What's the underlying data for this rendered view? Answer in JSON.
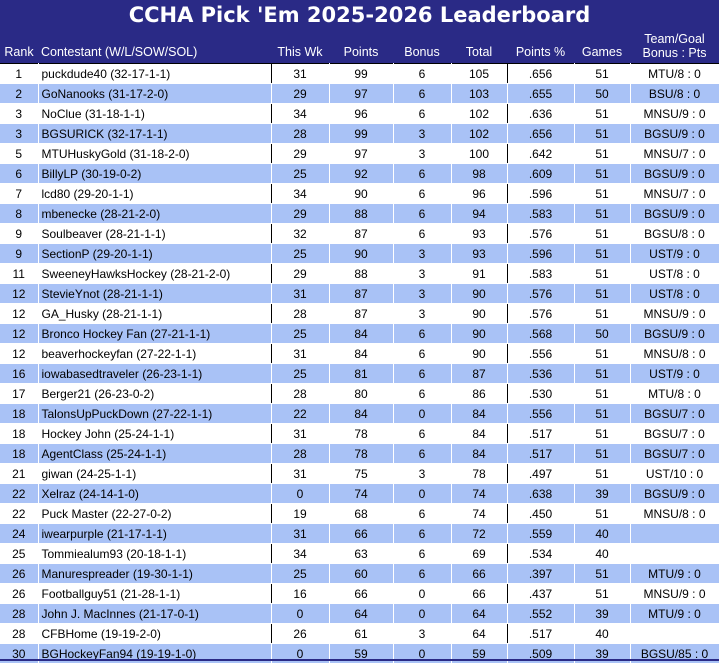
{
  "title": "CCHA Pick 'Em 2025-2026 Leaderboard",
  "headers": {
    "rank": "Rank",
    "contestant": "Contestant (W/L/SOW/SOL)",
    "this_wk": "This Wk",
    "points": "Points",
    "bonus": "Bonus",
    "total": "Total",
    "points_pct": "Points %",
    "games": "Games",
    "bonus_pts_line1": "Team/Goal",
    "bonus_pts_line2": "Bonus : Pts"
  },
  "rows": [
    {
      "rank": "1",
      "contestant": "puckdude40 (32-17-1-1)",
      "this_wk": "31",
      "points": "99",
      "bonus": "6",
      "total": "105",
      "pct": ".656",
      "games": "51",
      "bonus_pts": "MTU/8 : 0"
    },
    {
      "rank": "2",
      "contestant": "GoNanooks (31-17-2-0)",
      "this_wk": "29",
      "points": "97",
      "bonus": "6",
      "total": "103",
      "pct": ".655",
      "games": "50",
      "bonus_pts": "BSU/8 : 0"
    },
    {
      "rank": "3",
      "contestant": "NoClue (31-18-1-1)",
      "this_wk": "34",
      "points": "96",
      "bonus": "6",
      "total": "102",
      "pct": ".636",
      "games": "51",
      "bonus_pts": "MNSU/9 : 0"
    },
    {
      "rank": "3",
      "contestant": "BGSURICK (32-17-1-1)",
      "this_wk": "28",
      "points": "99",
      "bonus": "3",
      "total": "102",
      "pct": ".656",
      "games": "51",
      "bonus_pts": "BGSU/9 : 0"
    },
    {
      "rank": "5",
      "contestant": "MTUHuskyGold (31-18-2-0)",
      "this_wk": "29",
      "points": "97",
      "bonus": "3",
      "total": "100",
      "pct": ".642",
      "games": "51",
      "bonus_pts": "MNSU/7 : 0"
    },
    {
      "rank": "6",
      "contestant": "BillyLP (30-19-0-2)",
      "this_wk": "25",
      "points": "92",
      "bonus": "6",
      "total": "98",
      "pct": ".609",
      "games": "51",
      "bonus_pts": "BGSU/9 : 0"
    },
    {
      "rank": "7",
      "contestant": "lcd80 (29-20-1-1)",
      "this_wk": "34",
      "points": "90",
      "bonus": "6",
      "total": "96",
      "pct": ".596",
      "games": "51",
      "bonus_pts": "MNSU/7 : 0"
    },
    {
      "rank": "8",
      "contestant": "mbenecke (28-21-2-0)",
      "this_wk": "29",
      "points": "88",
      "bonus": "6",
      "total": "94",
      "pct": ".583",
      "games": "51",
      "bonus_pts": "BGSU/9 : 0"
    },
    {
      "rank": "9",
      "contestant": "Soulbeaver (28-21-1-1)",
      "this_wk": "32",
      "points": "87",
      "bonus": "6",
      "total": "93",
      "pct": ".576",
      "games": "51",
      "bonus_pts": "BGSU/8 : 0"
    },
    {
      "rank": "9",
      "contestant": "SectionP (29-20-1-1)",
      "this_wk": "25",
      "points": "90",
      "bonus": "3",
      "total": "93",
      "pct": ".596",
      "games": "51",
      "bonus_pts": "UST/9 : 0"
    },
    {
      "rank": "11",
      "contestant": "SweeneyHawksHockey (28-21-2-0)",
      "this_wk": "29",
      "points": "88",
      "bonus": "3",
      "total": "91",
      "pct": ".583",
      "games": "51",
      "bonus_pts": "UST/8 : 0"
    },
    {
      "rank": "12",
      "contestant": "StevieYnot (28-21-1-1)",
      "this_wk": "31",
      "points": "87",
      "bonus": "3",
      "total": "90",
      "pct": ".576",
      "games": "51",
      "bonus_pts": "UST/8 : 0"
    },
    {
      "rank": "12",
      "contestant": "GA_Husky (28-21-1-1)",
      "this_wk": "28",
      "points": "87",
      "bonus": "3",
      "total": "90",
      "pct": ".576",
      "games": "51",
      "bonus_pts": "MNSU/9 : 0"
    },
    {
      "rank": "12",
      "contestant": "Bronco Hockey Fan (27-21-1-1)",
      "this_wk": "25",
      "points": "84",
      "bonus": "6",
      "total": "90",
      "pct": ".568",
      "games": "50",
      "bonus_pts": "BGSU/9 : 0"
    },
    {
      "rank": "12",
      "contestant": "beaverhockeyfan (27-22-1-1)",
      "this_wk": "31",
      "points": "84",
      "bonus": "6",
      "total": "90",
      "pct": ".556",
      "games": "51",
      "bonus_pts": "MNSU/8 : 0"
    },
    {
      "rank": "16",
      "contestant": "iowabasedtraveler (26-23-1-1)",
      "this_wk": "25",
      "points": "81",
      "bonus": "6",
      "total": "87",
      "pct": ".536",
      "games": "51",
      "bonus_pts": "UST/9 : 0"
    },
    {
      "rank": "17",
      "contestant": "Berger21 (26-23-0-2)",
      "this_wk": "28",
      "points": "80",
      "bonus": "6",
      "total": "86",
      "pct": ".530",
      "games": "51",
      "bonus_pts": "MTU/8 : 0"
    },
    {
      "rank": "18",
      "contestant": "TalonsUpPuckDown (27-22-1-1)",
      "this_wk": "22",
      "points": "84",
      "bonus": "0",
      "total": "84",
      "pct": ".556",
      "games": "51",
      "bonus_pts": "BGSU/7 : 0"
    },
    {
      "rank": "18",
      "contestant": "Hockey John (25-24-1-1)",
      "this_wk": "31",
      "points": "78",
      "bonus": "6",
      "total": "84",
      "pct": ".517",
      "games": "51",
      "bonus_pts": "BGSU/7 : 0"
    },
    {
      "rank": "18",
      "contestant": "AgentClass (25-24-1-1)",
      "this_wk": "28",
      "points": "78",
      "bonus": "6",
      "total": "84",
      "pct": ".517",
      "games": "51",
      "bonus_pts": "BGSU/7 : 0"
    },
    {
      "rank": "21",
      "contestant": "giwan (24-25-1-1)",
      "this_wk": "31",
      "points": "75",
      "bonus": "3",
      "total": "78",
      "pct": ".497",
      "games": "51",
      "bonus_pts": "UST/10 : 0"
    },
    {
      "rank": "22",
      "contestant": "Xelraz (24-14-1-0)",
      "this_wk": "0",
      "points": "74",
      "bonus": "0",
      "total": "74",
      "pct": ".638",
      "games": "39",
      "bonus_pts": "BGSU/9 : 0"
    },
    {
      "rank": "22",
      "contestant": "Puck Master (22-27-0-2)",
      "this_wk": "19",
      "points": "68",
      "bonus": "6",
      "total": "74",
      "pct": ".450",
      "games": "51",
      "bonus_pts": "MNSU/8 : 0"
    },
    {
      "rank": "24",
      "contestant": "iwearpurple (21-17-1-1)",
      "this_wk": "31",
      "points": "66",
      "bonus": "6",
      "total": "72",
      "pct": ".559",
      "games": "40",
      "bonus_pts": ""
    },
    {
      "rank": "25",
      "contestant": "Tommiealum93 (20-18-1-1)",
      "this_wk": "34",
      "points": "63",
      "bonus": "6",
      "total": "69",
      "pct": ".534",
      "games": "40",
      "bonus_pts": ""
    },
    {
      "rank": "26",
      "contestant": "Manurespreader (19-30-1-1)",
      "this_wk": "25",
      "points": "60",
      "bonus": "6",
      "total": "66",
      "pct": ".397",
      "games": "51",
      "bonus_pts": "MTU/9 : 0"
    },
    {
      "rank": "26",
      "contestant": "Footballguy51 (21-28-1-1)",
      "this_wk": "16",
      "points": "66",
      "bonus": "0",
      "total": "66",
      "pct": ".437",
      "games": "51",
      "bonus_pts": "MNSU/9 : 0"
    },
    {
      "rank": "28",
      "contestant": "John J. MacInnes (21-17-0-1)",
      "this_wk": "0",
      "points": "64",
      "bonus": "0",
      "total": "64",
      "pct": ".552",
      "games": "39",
      "bonus_pts": "MTU/9 : 0"
    },
    {
      "rank": "28",
      "contestant": "CFBHome (19-19-2-0)",
      "this_wk": "26",
      "points": "61",
      "bonus": "3",
      "total": "64",
      "pct": ".517",
      "games": "40",
      "bonus_pts": ""
    },
    {
      "rank": "30",
      "contestant": "BGHockeyFan94 (19-19-1-0)",
      "this_wk": "0",
      "points": "59",
      "bonus": "0",
      "total": "59",
      "pct": ".509",
      "games": "39",
      "bonus_pts": "BGSU/85 : 0"
    }
  ],
  "colors": {
    "header_bg": "#2a2a86",
    "row_alt_bg": "#a9c2f6",
    "row_bg": "#ffffff"
  }
}
